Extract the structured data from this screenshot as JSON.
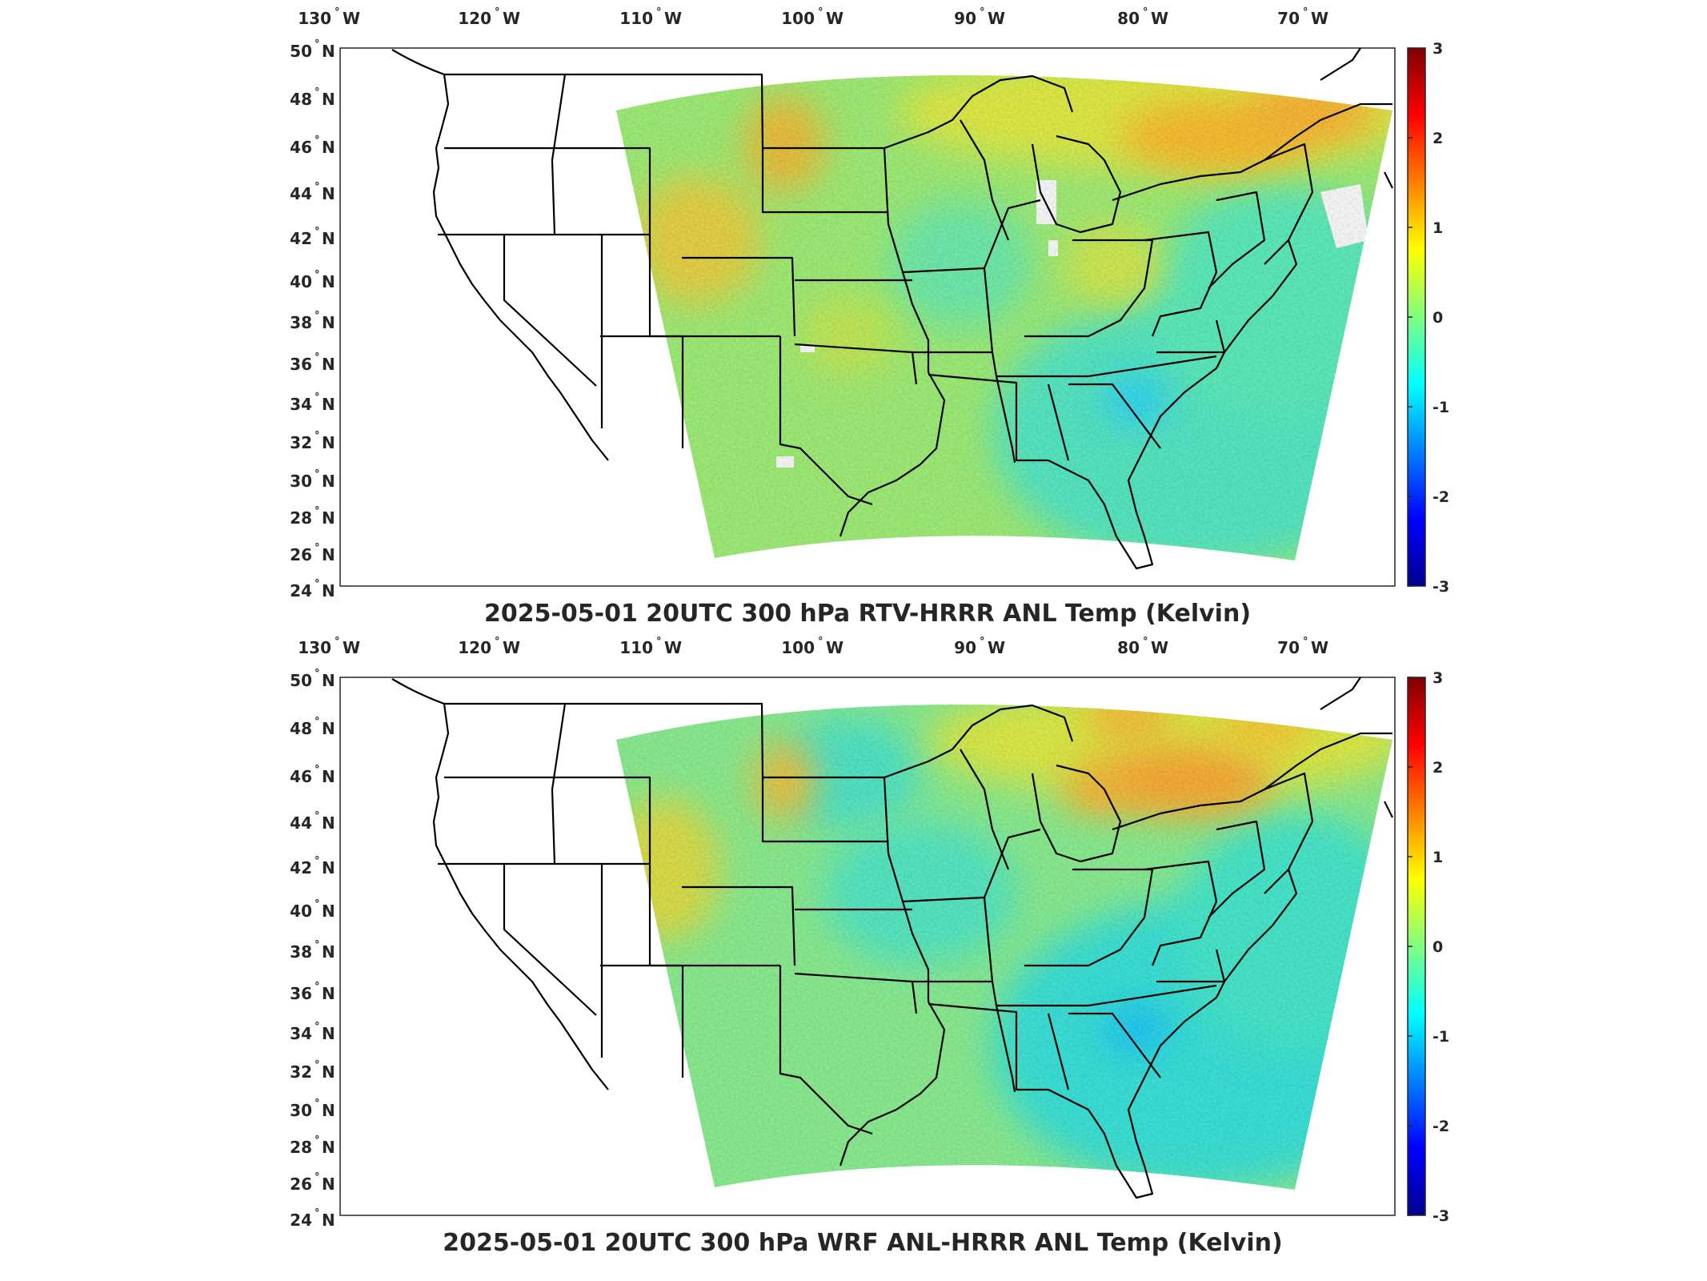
{
  "panels": [
    {
      "title": "2025-05-01 20UTC 300 hPa RTV-HRRR ANL Temp (Kelvin)",
      "variant": "rtv",
      "lon_ticks": [
        "130",
        "120",
        "110",
        "100",
        "90",
        "80",
        "70"
      ],
      "lon_suffix": "W",
      "lat_ticks": [
        "50",
        "48",
        "46",
        "44",
        "42",
        "40",
        "38",
        "36",
        "34",
        "32",
        "30",
        "28",
        "26",
        "24"
      ],
      "lat_suffix": "N",
      "colorbar_ticks": [
        "3",
        "2",
        "1",
        "0",
        "-1",
        "-2",
        "-3"
      ]
    },
    {
      "title": "2025-05-01 20UTC 300 hPa WRF ANL-HRRR ANL Temp (Kelvin)",
      "variant": "wrf",
      "lon_ticks": [
        "130",
        "120",
        "110",
        "100",
        "90",
        "80",
        "70"
      ],
      "lon_suffix": "W",
      "lat_ticks": [
        "50",
        "48",
        "46",
        "44",
        "42",
        "40",
        "38",
        "36",
        "34",
        "32",
        "30",
        "28",
        "26",
        "24"
      ],
      "lat_suffix": "N",
      "colorbar_ticks": [
        "3",
        "2",
        "1",
        "0",
        "-1",
        "-2",
        "-3"
      ]
    }
  ],
  "colormap": [
    "#00008f",
    "#0000ff",
    "#00ffff",
    "#ffff00",
    "#ff0000",
    "#800000"
  ],
  "colorbar_range": [
    -3,
    3
  ]
}
